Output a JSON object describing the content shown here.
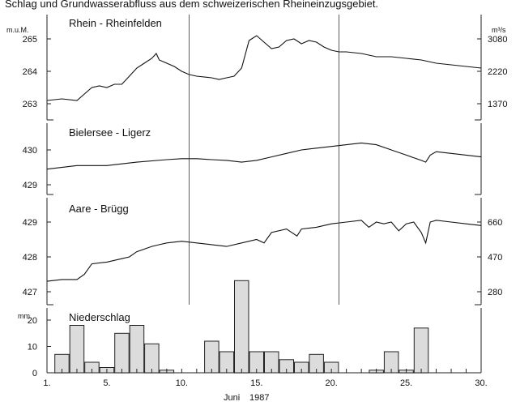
{
  "caption_top": "Schlag und Grundwasserabfluss aus dem schweizerischen Rheineinzugsgebiet.",
  "x_axis": {
    "ticks": [
      "1.",
      "5.",
      "10.",
      "15.",
      "20.",
      "25.",
      "30."
    ],
    "label_month": "Juni",
    "label_year": "1987",
    "range": [
      1,
      30
    ]
  },
  "markers_day": [
    10.5,
    20.5
  ],
  "colors": {
    "line": "#111111",
    "bar_fill": "#dcdcdc",
    "frame": "#222222"
  },
  "chart_data": [
    {
      "type": "line",
      "title": "Rhein - Rheinfelden",
      "left_unit": "m.u.M.",
      "right_unit": "m³/s",
      "ylim": [
        263,
        265.2
      ],
      "yticks": [
        {
          "value": 263,
          "label": "263"
        },
        {
          "value": 264,
          "label": "264"
        },
        {
          "value": 265,
          "label": "265"
        }
      ],
      "right_ticks": [
        {
          "value": 263,
          "label": "1370"
        },
        {
          "value": 264,
          "label": "2220"
        },
        {
          "value": 265,
          "label": "3080"
        }
      ],
      "x": [
        1,
        2,
        3,
        3.5,
        4,
        4.5,
        5,
        5.5,
        6,
        6.5,
        7,
        7.5,
        8,
        8.3,
        8.5,
        9,
        9.5,
        10,
        10.5,
        11,
        12,
        12.5,
        13,
        13.5,
        14,
        14.5,
        15,
        15.5,
        16,
        16.5,
        17,
        17.5,
        18,
        18.5,
        19,
        19.5,
        20,
        20.5,
        21,
        22,
        23,
        24,
        25,
        26,
        27,
        28,
        29,
        30
      ],
      "values": [
        263.1,
        263.15,
        263.1,
        263.3,
        263.5,
        263.55,
        263.5,
        263.6,
        263.6,
        263.85,
        264.1,
        264.25,
        264.4,
        264.55,
        264.35,
        264.25,
        264.15,
        264.0,
        263.9,
        263.85,
        263.8,
        263.75,
        263.8,
        263.85,
        264.1,
        264.95,
        265.1,
        264.9,
        264.7,
        264.75,
        264.95,
        265.0,
        264.85,
        264.95,
        264.9,
        264.75,
        264.65,
        264.6,
        264.6,
        264.55,
        264.45,
        264.45,
        264.4,
        264.35,
        264.25,
        264.2,
        264.15,
        264.1
      ]
    },
    {
      "type": "line",
      "title": "Bielersee - Ligerz",
      "ylim": [
        429,
        430.4
      ],
      "yticks": [
        {
          "value": 429,
          "label": "429"
        },
        {
          "value": 430,
          "label": "430"
        }
      ],
      "x": [
        1,
        3,
        5,
        7,
        9,
        10,
        11,
        12,
        13,
        14,
        15,
        16,
        17,
        18,
        19,
        20,
        21,
        22,
        23,
        24,
        25,
        26,
        26.3,
        26.6,
        27,
        28,
        29,
        30
      ],
      "values": [
        429.45,
        429.55,
        429.55,
        429.65,
        429.72,
        429.75,
        429.75,
        429.72,
        429.7,
        429.65,
        429.7,
        429.8,
        429.9,
        430.0,
        430.05,
        430.1,
        430.15,
        430.2,
        430.15,
        430.0,
        429.85,
        429.7,
        429.65,
        429.85,
        429.95,
        429.9,
        429.85,
        429.8
      ]
    },
    {
      "type": "line",
      "title": "Aare - Brügg",
      "right_unit": "",
      "ylim": [
        427,
        429.3
      ],
      "yticks": [
        {
          "value": 427,
          "label": "427"
        },
        {
          "value": 428,
          "label": "428"
        },
        {
          "value": 429,
          "label": "429"
        }
      ],
      "right_ticks": [
        {
          "value": 427,
          "label": "280"
        },
        {
          "value": 428,
          "label": "470"
        },
        {
          "value": 429,
          "label": "660"
        }
      ],
      "x": [
        1,
        2,
        3,
        3.5,
        4,
        5,
        6,
        6.5,
        7,
        8,
        8.5,
        9,
        10,
        11,
        12,
        13,
        14,
        15,
        15.5,
        16,
        17,
        17.7,
        18,
        19,
        20,
        21,
        22,
        22.5,
        23,
        23.5,
        24,
        24.5,
        25,
        25.5,
        26,
        26.3,
        26.6,
        27,
        28,
        29,
        30
      ],
      "values": [
        427.3,
        427.35,
        427.35,
        427.5,
        427.8,
        427.85,
        427.95,
        428.0,
        428.15,
        428.3,
        428.35,
        428.4,
        428.45,
        428.4,
        428.35,
        428.3,
        428.4,
        428.5,
        428.4,
        428.7,
        428.8,
        428.6,
        428.8,
        428.85,
        428.95,
        429.0,
        429.05,
        428.85,
        429.0,
        428.95,
        429.0,
        428.75,
        428.95,
        429.0,
        428.7,
        428.4,
        429.0,
        429.05,
        429.0,
        428.95,
        428.9
      ]
    },
    {
      "type": "bar",
      "title": "Niederschlag",
      "left_unit": "mm",
      "ylim": [
        0,
        38
      ],
      "yticks": [
        {
          "value": 0,
          "label": "0"
        },
        {
          "value": 10,
          "label": "10"
        },
        {
          "value": 20,
          "label": "20"
        }
      ],
      "x": [
        1,
        2,
        3,
        4,
        5,
        6,
        7,
        8,
        9,
        10,
        11,
        12,
        13,
        14,
        15,
        16,
        17,
        18,
        19,
        20,
        21,
        22,
        23,
        24,
        25,
        26,
        27,
        28,
        29,
        30
      ],
      "values": [
        0,
        7,
        18,
        4,
        2,
        15,
        18,
        11,
        1,
        0,
        0,
        12,
        8,
        35,
        8,
        8,
        5,
        4,
        7,
        4,
        0,
        0,
        1,
        8,
        1,
        17,
        0,
        0,
        0,
        0
      ]
    }
  ]
}
